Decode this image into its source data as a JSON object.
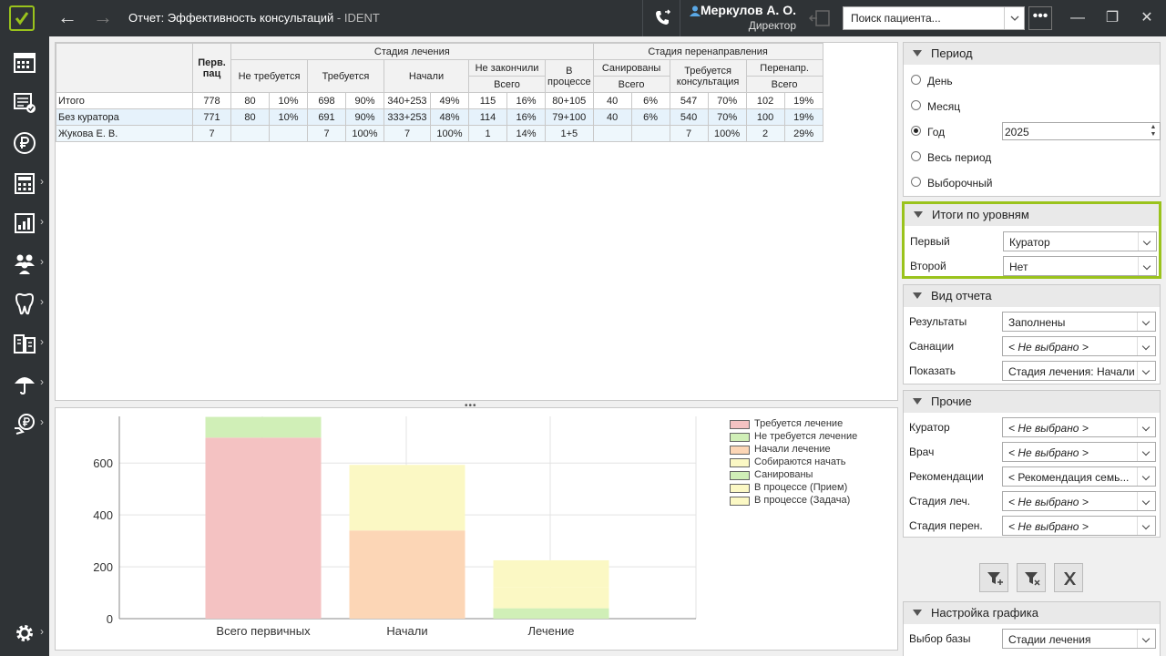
{
  "header": {
    "title": "Отчет: Эффективность консультаций",
    "app_name": " - IDENT",
    "user_name": "Меркулов А. О.",
    "user_role": "Директор",
    "search_placeholder": "Поиск пациента...",
    "more_label": "•••"
  },
  "sidebar": {
    "items": [
      {
        "icon": "calendar-grid-icon",
        "has_submenu": false
      },
      {
        "icon": "schedule-check-icon",
        "has_submenu": false
      },
      {
        "icon": "ruble-icon",
        "has_submenu": false
      },
      {
        "icon": "calculator-icon",
        "has_submenu": true
      },
      {
        "icon": "bar-chart-icon",
        "has_submenu": true
      },
      {
        "icon": "people-icon",
        "has_submenu": true
      },
      {
        "icon": "tooth-icon",
        "has_submenu": true
      },
      {
        "icon": "devices-icon",
        "has_submenu": true
      },
      {
        "icon": "umbrella-icon",
        "has_submenu": true
      },
      {
        "icon": "ruble-hand-icon",
        "has_submenu": true
      },
      {
        "icon": "gear-icon",
        "has_submenu": true
      }
    ]
  },
  "table": {
    "h_perv": "Перв. пац",
    "h_stage": "Стадия лечения",
    "h_redirect": "Стадия перенаправления",
    "h_not_required": "Не требуется",
    "h_required": "Требуется",
    "h_started": "Начали",
    "h_not_finished": "Не закончили",
    "h_in_process": "В процессе",
    "h_sanitized": "Санированы",
    "h_req_consult": "Требуется консультация",
    "h_redirected": "Перенапр.",
    "h_total": "Всего",
    "rows": [
      {
        "label": "Итого",
        "perv": "778",
        "nt": "80",
        "ntp": "10%",
        "rq": "698",
        "rqp": "90%",
        "st": "340+253",
        "stp": "49%",
        "nf": "115",
        "nfp": "16%",
        "ip": "80+105",
        "sn": "40",
        "snp": "6%",
        "rc": "547",
        "rcp": "70%",
        "rd": "102",
        "rdp": "19%"
      },
      {
        "label": "Без куратора",
        "perv": "771",
        "nt": "80",
        "ntp": "10%",
        "rq": "691",
        "rqp": "90%",
        "st": "333+253",
        "stp": "48%",
        "nf": "114",
        "nfp": "16%",
        "ip": "79+100",
        "sn": "40",
        "snp": "6%",
        "rc": "540",
        "rcp": "70%",
        "rd": "100",
        "rdp": "19%"
      },
      {
        "label": "Жукова Е. В.",
        "perv": "7",
        "nt": "",
        "ntp": "",
        "rq": "7",
        "rqp": "100%",
        "st": "7",
        "stp": "100%",
        "nf": "1",
        "nfp": "14%",
        "ip": "1+5",
        "sn": "",
        "snp": "",
        "rc": "7",
        "rcp": "100%",
        "rd": "2",
        "rdp": "29%"
      }
    ]
  },
  "chart_data": {
    "type": "bar",
    "stacked": true,
    "categories": [
      "Всего первичных",
      "Начали",
      "Лечение"
    ],
    "ylim": [
      0,
      780
    ],
    "yticks": [
      0,
      200,
      400,
      600
    ],
    "grid": true,
    "legend_position": "top-right",
    "series": [
      {
        "name": "Требуется лечение",
        "color": "#f4c2c2",
        "values": [
          698,
          0,
          0
        ]
      },
      {
        "name": "Не требуется лечение",
        "color": "#d0efb7",
        "values": [
          80,
          0,
          0
        ]
      },
      {
        "name": "Начали лечение",
        "color": "#fcd6b6",
        "values": [
          0,
          340,
          0
        ]
      },
      {
        "name": "Собираются начать",
        "color": "#fbf8c4",
        "values": [
          0,
          253,
          0
        ]
      },
      {
        "name": "Санированы",
        "color": "#d0efb7",
        "values": [
          0,
          0,
          40
        ]
      },
      {
        "name": "В процессе (Прием)",
        "color": "#fbf8c4",
        "values": [
          0,
          0,
          80
        ]
      },
      {
        "name": "В процессе (Задача)",
        "color": "#fbf8c4",
        "values": [
          0,
          0,
          105
        ]
      }
    ]
  },
  "period": {
    "title": "Период",
    "options": [
      "День",
      "Месяц",
      "Год",
      "Весь период",
      "Выборочный"
    ],
    "selected": "Год",
    "year": "2025"
  },
  "levels": {
    "title": "Итоги по уровням",
    "first_label": "Первый",
    "first_value": "Куратор",
    "second_label": "Второй",
    "second_value": "Нет"
  },
  "view": {
    "title": "Вид отчета",
    "results_label": "Результаты",
    "results_value": "Заполнены",
    "sanations_label": "Санации",
    "sanations_value": "< Не выбрано >",
    "show_label": "Показать",
    "show_value": "Стадия лечения: Начали"
  },
  "other": {
    "title": "Прочие",
    "curator_label": "Куратор",
    "curator_value": "< Не выбрано >",
    "doctor_label": "Врач",
    "doctor_value": "< Не выбрано >",
    "recs_label": "Рекомендации",
    "recs_value": "< Рекомендация семь...",
    "stage_label": "Стадия леч.",
    "stage_value": "< Не выбрано >",
    "redir_label": "Стадия перен.",
    "redir_value": "< Не выбрано >"
  },
  "chart_settings": {
    "title": "Настройка графика",
    "base_label": "Выбор базы",
    "base_value": "Стадии лечения"
  }
}
